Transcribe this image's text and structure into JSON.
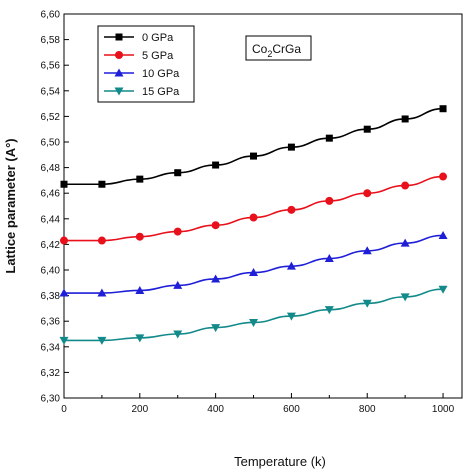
{
  "chart_data": {
    "type": "line",
    "xlabel": "Temperature (k)",
    "ylabel": "Lattice parameter (A°)",
    "annotation": {
      "base": "Co",
      "sub": "2",
      "rest": "CrGa"
    },
    "xlim": [
      0,
      1050
    ],
    "ylim": [
      6.3,
      6.6
    ],
    "x_ticks": [
      "0",
      "200",
      "400",
      "600",
      "800",
      "1000"
    ],
    "y_ticks": [
      "6,30",
      "6,32",
      "6,34",
      "6,36",
      "6,38",
      "6,40",
      "6,42",
      "6,44",
      "6,46",
      "6,48",
      "6,50",
      "6,52",
      "6,54",
      "6,56",
      "6,58",
      "6,60"
    ],
    "x": [
      0,
      100,
      200,
      300,
      400,
      500,
      600,
      700,
      800,
      900,
      1000
    ],
    "legend_position": "top-left",
    "series": [
      {
        "name": "0 GPa",
        "color": "#000000",
        "marker": "square",
        "values": [
          6.467,
          6.467,
          6.471,
          6.476,
          6.482,
          6.489,
          6.496,
          6.503,
          6.51,
          6.518,
          6.526
        ]
      },
      {
        "name": "5 GPa",
        "color": "#e8101a",
        "marker": "circle",
        "values": [
          6.423,
          6.423,
          6.426,
          6.43,
          6.435,
          6.441,
          6.447,
          6.454,
          6.46,
          6.466,
          6.473
        ]
      },
      {
        "name": "10 GPa",
        "color": "#1f1fd8",
        "marker": "triangle-up",
        "values": [
          6.382,
          6.382,
          6.384,
          6.388,
          6.393,
          6.398,
          6.403,
          6.409,
          6.415,
          6.421,
          6.427
        ]
      },
      {
        "name": "15 GPa",
        "color": "#138a8a",
        "marker": "triangle-down",
        "values": [
          6.345,
          6.345,
          6.347,
          6.35,
          6.355,
          6.359,
          6.364,
          6.369,
          6.374,
          6.379,
          6.385
        ]
      }
    ]
  }
}
